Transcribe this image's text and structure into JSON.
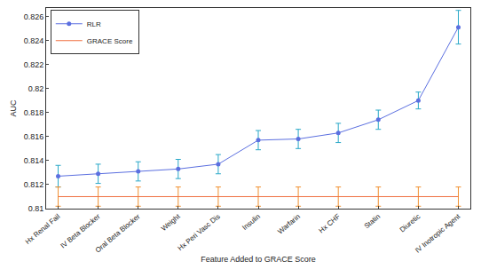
{
  "chart_data": {
    "type": "line",
    "x_label": "Feature Added to GRACE Score",
    "y_label": "AUC",
    "categories": [
      "Hx Renal Fail",
      "IV Beta Blocker",
      "Oral Beta Blocker",
      "Weight",
      "Hx Peri Vasc Dis",
      "Insulin",
      "Warfarin",
      "Hx CHF",
      "Statin",
      "Diuretic",
      "IV Inotropic Agent"
    ],
    "series": [
      {
        "name": "RLR",
        "color": "#5b6fe0",
        "marker": "circle",
        "line_style": "solid",
        "values": [
          0.8127,
          0.8129,
          0.8131,
          0.8133,
          0.8137,
          0.8157,
          0.8158,
          0.8163,
          0.8174,
          0.819,
          0.8251
        ],
        "errors": [
          0.0009,
          0.0008,
          0.0008,
          0.0008,
          0.0008,
          0.0008,
          0.0008,
          0.0008,
          0.0008,
          0.0007,
          0.0014
        ]
      },
      {
        "name": "GRACE Score",
        "color": "#f07040",
        "marker": "none",
        "line_style": "solid",
        "values": [
          0.811,
          0.811,
          0.811,
          0.811,
          0.811,
          0.811,
          0.811,
          0.811,
          0.811,
          0.811,
          0.811
        ],
        "errors": [
          0.0008,
          0.0008,
          0.0008,
          0.0008,
          0.0008,
          0.0008,
          0.0008,
          0.0008,
          0.0008,
          0.0008,
          0.0008
        ]
      }
    ],
    "ylim": [
      0.81,
      0.8267
    ],
    "yticks": [
      0.81,
      0.812,
      0.814,
      0.816,
      0.818,
      0.82,
      0.822,
      0.824,
      0.826
    ],
    "grid": false,
    "legend": "top-left"
  }
}
